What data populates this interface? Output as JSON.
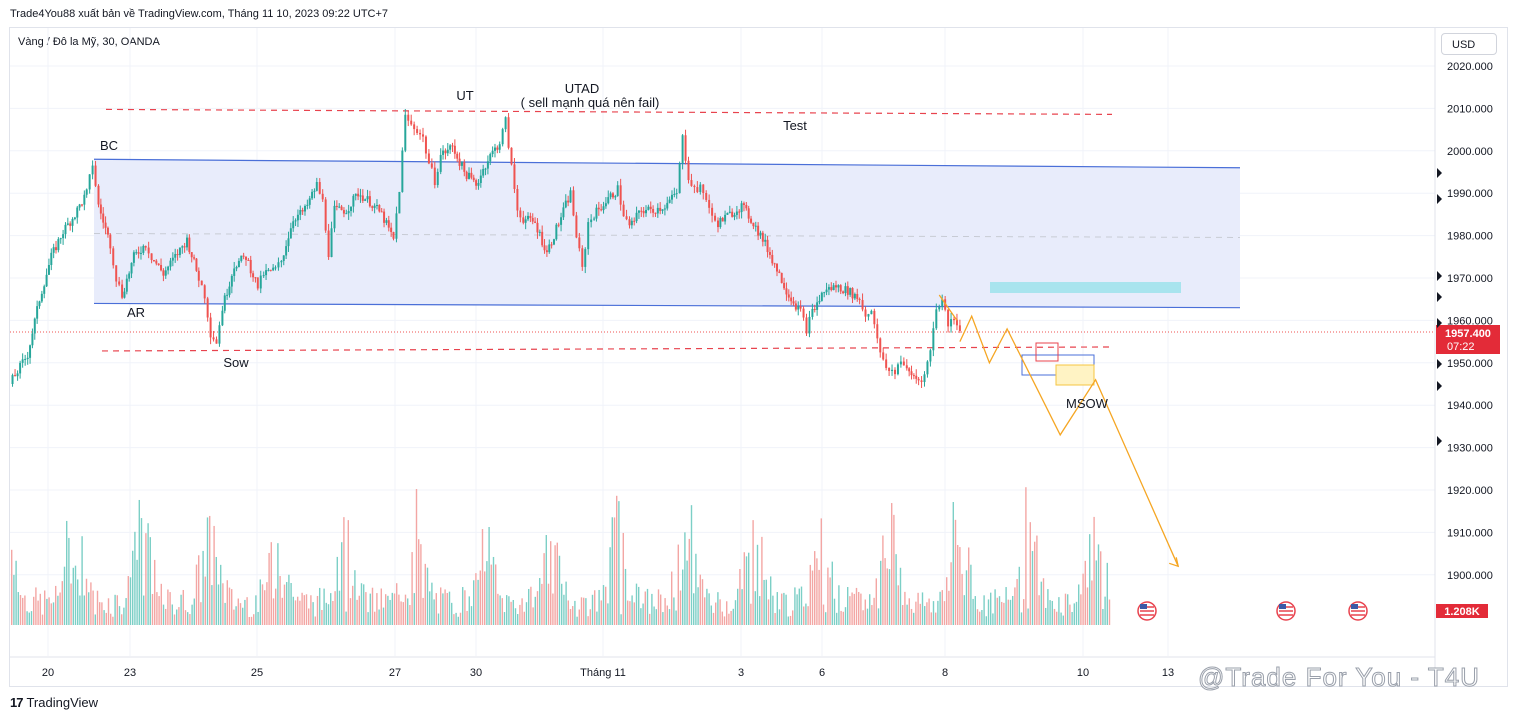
{
  "header": {
    "publish_line": "Trade4You88 xuất bản về TradingView.com, Tháng 11 10, 2023 09:22 UTC+7",
    "symbol_line": "Vàng / Đô la Mỹ, 30, OANDA",
    "currency": "USD"
  },
  "footer": {
    "brand": "TradingView",
    "watermark": "@Trade For You - T4U"
  },
  "colors": {
    "bull": "#26a69a",
    "bear": "#ef5350",
    "range_fill": "#e8ecfb",
    "range_line": "#4a6fd8",
    "dash": "#e8434e",
    "projection": "#f5a623",
    "supply_zone": "#a8e4ee",
    "price_badge": "#e32b38"
  },
  "chart_data": {
    "type": "candlestick",
    "symbol": "XAUUSD",
    "timeframe": "30",
    "ylim": [
      1890,
      2025
    ],
    "y_ticks": [
      2020,
      2010,
      2000,
      1990,
      1980,
      1970,
      1960,
      1950,
      1940,
      1930,
      1920,
      1910,
      1900
    ],
    "y_tick_labels": [
      "2020.000",
      "2010.000",
      "2000.000",
      "1990.000",
      "1980.000",
      "1970.000",
      "1960.000",
      "1950.000",
      "1940.000",
      "1930.000",
      "1920.000",
      "1910.000",
      "1900.000"
    ],
    "x_tick_labels": [
      "20",
      "23",
      "25",
      "27",
      "30",
      "Tháng 11",
      "3",
      "6",
      "8",
      "10",
      "13"
    ],
    "last_price": "1957.400",
    "countdown": "07:22",
    "volume_label": "1.208K",
    "price_path": [
      [
        0,
        1945
      ],
      [
        3,
        1952
      ],
      [
        5,
        1965
      ],
      [
        7,
        1975
      ],
      [
        9,
        1981
      ],
      [
        11,
        1985
      ],
      [
        13,
        1990
      ],
      [
        14,
        1997
      ],
      [
        15,
        1987
      ],
      [
        17,
        1978
      ],
      [
        18,
        1970
      ],
      [
        19,
        1966
      ],
      [
        21,
        1975
      ],
      [
        23,
        1978
      ],
      [
        24,
        1975
      ],
      [
        26,
        1971
      ],
      [
        28,
        1975
      ],
      [
        30,
        1979
      ],
      [
        32,
        1970
      ],
      [
        33,
        1966
      ],
      [
        34,
        1957
      ],
      [
        35,
        1955
      ],
      [
        36,
        1963
      ],
      [
        38,
        1973
      ],
      [
        40,
        1975
      ],
      [
        42,
        1968
      ],
      [
        43,
        1971
      ],
      [
        45,
        1972
      ],
      [
        46,
        1974
      ],
      [
        48,
        1984
      ],
      [
        50,
        1986
      ],
      [
        52,
        1992
      ],
      [
        53,
        1988
      ],
      [
        54,
        1976
      ],
      [
        55,
        1986
      ],
      [
        57,
        1986
      ],
      [
        59,
        1990
      ],
      [
        61,
        1988
      ],
      [
        63,
        1985
      ],
      [
        65,
        1979
      ],
      [
        66,
        1991
      ],
      [
        67,
        2008
      ],
      [
        68,
        2006
      ],
      [
        69,
        2005
      ],
      [
        70,
        2003
      ],
      [
        71,
        1997
      ],
      [
        72,
        1993
      ],
      [
        73,
        1999
      ],
      [
        75,
        2001
      ],
      [
        77,
        1995
      ],
      [
        79,
        1992
      ],
      [
        81,
        1998
      ],
      [
        83,
        2002
      ],
      [
        84,
        2007
      ],
      [
        85,
        1996
      ],
      [
        86,
        1986
      ],
      [
        87,
        1984
      ],
      [
        89,
        1983
      ],
      [
        91,
        1976
      ],
      [
        93,
        1983
      ],
      [
        95,
        1990
      ],
      [
        96,
        1980
      ],
      [
        97,
        1972
      ],
      [
        98,
        1983
      ],
      [
        99,
        1985
      ],
      [
        101,
        1988
      ],
      [
        103,
        1991
      ],
      [
        104,
        1985
      ],
      [
        105,
        1982
      ],
      [
        107,
        1986
      ],
      [
        109,
        1986
      ],
      [
        111,
        1987
      ],
      [
        113,
        1990
      ],
      [
        114,
        2003
      ],
      [
        115,
        1994
      ],
      [
        116,
        1991
      ],
      [
        117,
        1991
      ],
      [
        118,
        1989
      ],
      [
        119,
        1984
      ],
      [
        120,
        1983
      ],
      [
        122,
        1985
      ],
      [
        124,
        1987
      ],
      [
        126,
        1983
      ],
      [
        128,
        1978
      ],
      [
        130,
        1972
      ],
      [
        132,
        1966
      ],
      [
        134,
        1962
      ],
      [
        135,
        1958
      ],
      [
        136,
        1962
      ],
      [
        138,
        1967
      ],
      [
        140,
        1968
      ],
      [
        142,
        1967
      ],
      [
        144,
        1965
      ],
      [
        145,
        1961
      ],
      [
        146,
        1963
      ],
      [
        147,
        1955
      ],
      [
        148,
        1950
      ],
      [
        149,
        1948
      ],
      [
        150,
        1948
      ],
      [
        151,
        1951
      ],
      [
        152,
        1948
      ],
      [
        154,
        1946
      ],
      [
        155,
        1947
      ],
      [
        156,
        1953
      ],
      [
        157,
        1963
      ],
      [
        158,
        1965
      ],
      [
        159,
        1959
      ],
      [
        160,
        1961
      ],
      [
        161,
        1958
      ]
    ],
    "projection_path": [
      [
        161,
        1955
      ],
      [
        163,
        1961
      ],
      [
        166,
        1950
      ],
      [
        169,
        1958
      ],
      [
        178,
        1933
      ],
      [
        184,
        1946
      ],
      [
        198,
        1902
      ]
    ],
    "annotations": [
      "BC",
      "AR",
      "Sow",
      "UT",
      "UTAD",
      "( sell mạnh quá nên fail)",
      "Test",
      "MSOW"
    ],
    "levels": {
      "range_top": [
        1998,
        1996
      ],
      "range_bottom": [
        1964,
        1963
      ],
      "range_mid": 1980.5,
      "resistance_dashed": 2010,
      "support_dashed": 1953.5
    }
  }
}
